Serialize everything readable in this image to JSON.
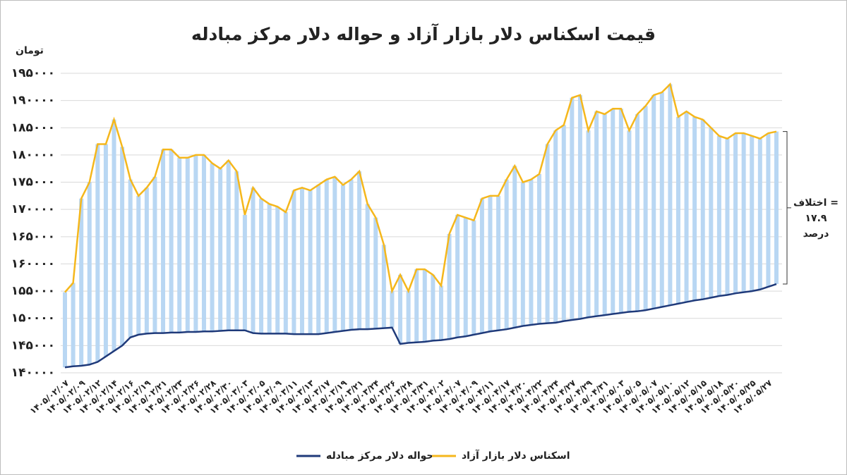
{
  "chart_data": {
    "type": "line",
    "title": "قیمت اسکناس دلار بازار آزاد و حواله دلار مرکز مبادله",
    "y_label": "تومان",
    "annotation": [
      "اختلاف =",
      "۱۷.۹",
      "درصد"
    ],
    "range_color": "#b9d7f3",
    "grid": true,
    "legend": "bottom",
    "ylim": [
      140000,
      195000
    ],
    "yticks": [
      {
        "value": 140000,
        "label": "۱۴۰۰۰۰"
      },
      {
        "value": 145000,
        "label": "۱۴۵۰۰۰"
      },
      {
        "value": 150000,
        "label": "۱۵۰۰۰۰"
      },
      {
        "value": 155000,
        "label": "۱۵۵۰۰۰"
      },
      {
        "value": 160000,
        "label": "۱۶۰۰۰۰"
      },
      {
        "value": 165000,
        "label": "۱۶۵۰۰۰"
      },
      {
        "value": 170000,
        "label": "۱۷۰۰۰۰"
      },
      {
        "value": 175000,
        "label": "۱۷۵۰۰۰"
      },
      {
        "value": 180000,
        "label": "۱۸۰۰۰۰"
      },
      {
        "value": 185000,
        "label": "۱۸۵۰۰۰"
      },
      {
        "value": 190000,
        "label": "۱۹۰۰۰۰"
      },
      {
        "value": 195000,
        "label": "۱۹۵۰۰۰"
      }
    ],
    "categories": [
      "۱۴۰۵/۰۲/۰۷",
      null,
      "۱۴۰۵/۰۲/۰۹",
      null,
      "۱۴۰۵/۰۲/۱۲",
      null,
      "۱۴۰۵/۰۲/۱۴",
      null,
      "۱۴۰۵/۰۲/۱۶",
      null,
      "۱۴۰۵/۰۲/۱۹",
      null,
      "۱۴۰۵/۰۲/۲۱",
      null,
      "۱۴۰۵/۰۲/۲۳",
      null,
      "۱۴۰۵/۰۲/۲۶",
      null,
      "۱۴۰۵/۰۲/۲۸",
      null,
      "۱۴۰۵/۰۲/۳۰",
      null,
      "۱۴۰۵/۰۳/۰۳",
      null,
      "۱۴۰۵/۰۳/۰۵",
      null,
      "۱۴۰۵/۰۳/۰۹",
      null,
      "۱۴۰۵/۰۳/۱۱",
      null,
      "۱۴۰۵/۰۳/۱۳",
      null,
      "۱۴۰۵/۰۳/۱۷",
      null,
      "۱۴۰۵/۰۳/۱۹",
      null,
      "۱۴۰۵/۰۳/۲۱",
      null,
      "۱۴۰۵/۰۳/۲۴",
      null,
      "۱۴۰۵/۰۳/۲۶",
      null,
      "۱۴۰۵/۰۳/۲۸",
      null,
      "۱۴۰۵/۰۳/۳۱",
      null,
      "۱۴۰۵/۰۴/۰۲",
      null,
      "۱۴۰۵/۰۴/۰۷",
      null,
      "۱۴۰۵/۰۴/۰۹",
      null,
      "۱۴۰۵/۰۴/۱۱",
      null,
      "۱۴۰۵/۰۴/۱۷",
      null,
      "۱۴۰۵/۰۴/۲۰",
      null,
      "۱۴۰۵/۰۴/۲۲",
      null,
      "۱۴۰۵/۰۴/۲۴",
      null,
      "۱۴۰۵/۰۴/۲۷",
      null,
      "۱۴۰۵/۰۴/۲۹",
      null,
      "۱۴۰۵/۰۴/۳۱",
      null,
      "۱۴۰۵/۰۵/۰۳",
      null,
      "۱۴۰۵/۰۵/۰۵",
      null,
      "۱۴۰۵/۰۵/۰۷",
      null,
      "۱۴۰۵/۰۵/۱۰",
      null,
      "۱۴۰۵/۰۵/۱۲",
      null,
      "۱۴۰۵/۰۵/۱۵",
      null,
      "۱۴۰۵/۰۵/۱۸",
      null,
      "۱۴۰۵/۰۵/۲۰",
      null,
      "۱۴۰۵/۰۵/۲۵",
      null,
      "۱۴۰۵/۰۵/۲۷",
      null
    ],
    "series": [
      {
        "name": "حواله دلار مرکز مبادله",
        "color": "#1f3a7a",
        "values": [
          141000,
          141200,
          141300,
          141500,
          142000,
          143000,
          144000,
          145000,
          146500,
          147000,
          147200,
          147300,
          147300,
          147400,
          147400,
          147500,
          147500,
          147600,
          147600,
          147700,
          147800,
          147800,
          147800,
          147300,
          147200,
          147200,
          147200,
          147200,
          147100,
          147100,
          147100,
          147100,
          147300,
          147500,
          147700,
          147900,
          148000,
          148000,
          148100,
          148200,
          148300,
          145300,
          145500,
          145600,
          145700,
          145900,
          146000,
          146200,
          146500,
          146700,
          147000,
          147300,
          147600,
          147800,
          148000,
          148300,
          148600,
          148800,
          149000,
          149100,
          149200,
          149500,
          149700,
          149900,
          150200,
          150400,
          150600,
          150800,
          151000,
          151200,
          151300,
          151500,
          151800,
          152100,
          152400,
          152700,
          153000,
          153300,
          153500,
          153800,
          154100,
          154300,
          154600,
          154800,
          155000,
          155300,
          155800,
          156300
        ]
      },
      {
        "name": "اسکناس دلار بازار آزاد",
        "color": "#f5b71c",
        "values": [
          154800,
          156500,
          172000,
          175000,
          182000,
          182000,
          186500,
          181500,
          175500,
          172500,
          174000,
          176000,
          181000,
          181000,
          179500,
          179500,
          180000,
          180000,
          178500,
          177500,
          179000,
          177000,
          169000,
          174000,
          172000,
          171000,
          170500,
          169500,
          173500,
          174000,
          173500,
          174500,
          175500,
          176000,
          174500,
          175500,
          177000,
          171000,
          168500,
          163500,
          155000,
          158000,
          155000,
          159000,
          159000,
          158000,
          156000,
          165500,
          169000,
          168500,
          168000,
          172000,
          172500,
          172500,
          175500,
          178000,
          175000,
          175500,
          176500,
          182000,
          184500,
          185500,
          190500,
          191000,
          184500,
          188000,
          187500,
          188500,
          188500,
          184500,
          187500,
          189000,
          191000,
          191500,
          193000,
          187000,
          188000,
          187000,
          186500,
          185000,
          183500,
          183000,
          184000,
          184000,
          183500,
          183000,
          184000,
          184300
        ]
      }
    ]
  }
}
